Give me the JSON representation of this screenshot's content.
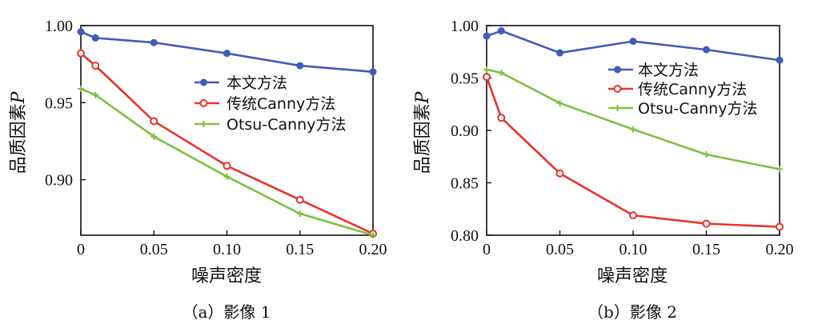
{
  "chart_data": [
    {
      "type": "line",
      "caption": "（a）影像 1",
      "xlabel": "噪声密度",
      "ylabel": "品质因素",
      "ylabel_var": "P",
      "x": [
        0,
        0.01,
        0.05,
        0.1,
        0.15,
        0.2
      ],
      "x_ticks": [
        "0",
        "0.05",
        "0.10",
        "0.15",
        "0.20"
      ],
      "x_tick_values": [
        0,
        0.05,
        0.1,
        0.15,
        0.2
      ],
      "xlim": [
        0,
        0.2
      ],
      "y_ticks": [
        "0.90",
        "0.95",
        "1.00"
      ],
      "y_tick_values": [
        0.9,
        0.95,
        1.0
      ],
      "ylim": [
        0.864,
        1.0
      ],
      "legend_position": "center",
      "series": [
        {
          "name": "本文方法",
          "color": "#3f5cb8",
          "marker": "circle-filled",
          "values": [
            0.996,
            0.992,
            0.989,
            0.982,
            0.974,
            0.97
          ]
        },
        {
          "name": "传统Canny方法",
          "color": "#e8332d",
          "marker": "circle-open",
          "values": [
            0.982,
            0.974,
            0.938,
            0.909,
            0.887,
            0.865
          ]
        },
        {
          "name": "Otsu-Canny方法",
          "color": "#7dc142",
          "marker": "plus",
          "values": [
            0.959,
            0.955,
            0.928,
            0.902,
            0.878,
            0.864
          ]
        }
      ]
    },
    {
      "type": "line",
      "caption": "（b）影像 2",
      "xlabel": "噪声密度",
      "ylabel": "品质因素",
      "ylabel_var": "P",
      "x": [
        0,
        0.01,
        0.05,
        0.1,
        0.15,
        0.2
      ],
      "x_ticks": [
        "0",
        "0.05",
        "0.10",
        "0.15",
        "0.20"
      ],
      "x_tick_values": [
        0,
        0.05,
        0.1,
        0.15,
        0.2
      ],
      "xlim": [
        0,
        0.2
      ],
      "y_ticks": [
        "0.80",
        "0.85",
        "0.90",
        "0.95",
        "1.00"
      ],
      "y_tick_values": [
        0.8,
        0.85,
        0.9,
        0.95,
        1.0
      ],
      "ylim": [
        0.8,
        1.0
      ],
      "legend_position": "top-right",
      "series": [
        {
          "name": "本文方法",
          "color": "#3f5cb8",
          "marker": "circle-filled",
          "values": [
            0.99,
            0.995,
            0.974,
            0.985,
            0.977,
            0.967
          ]
        },
        {
          "name": "传统Canny方法",
          "color": "#e8332d",
          "marker": "circle-open",
          "values": [
            0.951,
            0.912,
            0.859,
            0.819,
            0.811,
            0.808
          ]
        },
        {
          "name": "Otsu-Canny方法",
          "color": "#7dc142",
          "marker": "plus",
          "values": [
            0.958,
            0.955,
            0.926,
            0.901,
            0.877,
            0.863
          ]
        }
      ]
    }
  ]
}
